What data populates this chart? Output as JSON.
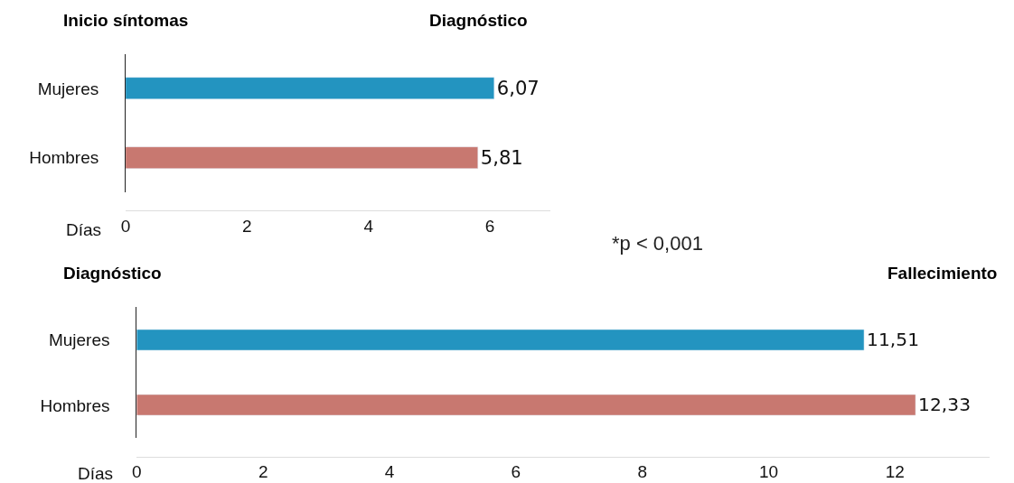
{
  "chart_data": [
    {
      "type": "bar",
      "orientation": "horizontal",
      "categories": [
        "Mujeres",
        "Hombres"
      ],
      "values": [
        6.07,
        5.81
      ],
      "colors": [
        "#2394c0",
        "#c87870"
      ],
      "value_labels": [
        "6,07",
        "5,81"
      ],
      "xlabel": "Días",
      "xlim": [
        0,
        7
      ],
      "xticks": [
        0,
        2,
        4,
        6
      ],
      "annotations": [
        "Inicio síntomas",
        "Diagnóstico",
        "*p < 0,001"
      ]
    },
    {
      "type": "bar",
      "orientation": "horizontal",
      "categories": [
        "Mujeres",
        "Hombres"
      ],
      "values": [
        11.51,
        12.33
      ],
      "colors": [
        "#2394c0",
        "#c87870"
      ],
      "value_labels": [
        "11,51",
        "12,33"
      ],
      "xlabel": "Días",
      "xlim": [
        0,
        13.5
      ],
      "xticks": [
        0,
        2,
        4,
        6,
        8,
        10,
        12
      ],
      "annotations": [
        "Diagnóstico",
        "Fallecimiento"
      ]
    }
  ]
}
